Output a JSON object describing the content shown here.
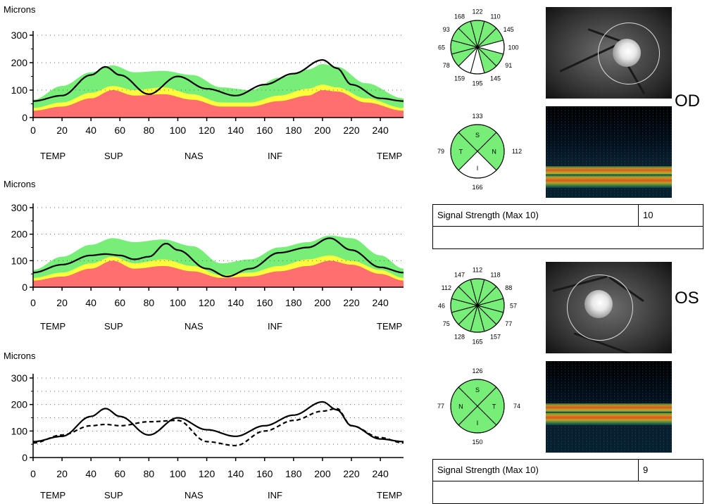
{
  "charts": [
    {
      "name": "od-rnfl-chart",
      "y_unit_label": "Microns",
      "x_tick_labels": [
        "0",
        "20",
        "40",
        "60",
        "80",
        "100",
        "120",
        "140",
        "160",
        "180",
        "200",
        "220",
        "240"
      ],
      "y_tick_labels": [
        "0",
        "100",
        "200",
        "300"
      ],
      "region_labels": [
        "TEMP",
        "SUP",
        "NAS",
        "INF",
        "TEMP"
      ]
    },
    {
      "name": "os-rnfl-chart",
      "y_unit_label": "Microns",
      "x_tick_labels": [
        "0",
        "20",
        "40",
        "60",
        "80",
        "100",
        "120",
        "140",
        "160",
        "180",
        "200",
        "220",
        "240"
      ],
      "y_tick_labels": [
        "0",
        "100",
        "200",
        "300"
      ],
      "region_labels": [
        "TEMP",
        "SUP",
        "NAS",
        "INF",
        "TEMP"
      ]
    },
    {
      "name": "comparison-chart",
      "y_unit_label": "Microns",
      "x_tick_labels": [
        "0",
        "20",
        "40",
        "60",
        "80",
        "100",
        "120",
        "140",
        "160",
        "180",
        "200",
        "220",
        "240"
      ],
      "y_tick_labels": [
        "0",
        "100",
        "200",
        "300"
      ],
      "region_labels": [
        "TEMP",
        "SUP",
        "NAS",
        "INF",
        "TEMP"
      ]
    }
  ],
  "chart_data": [
    {
      "type": "area",
      "xlabel": "",
      "ylabel": "Microns",
      "xlim": [
        0,
        256
      ],
      "ylim": [
        0,
        300
      ],
      "x": [
        0,
        20,
        40,
        50,
        60,
        80,
        100,
        120,
        140,
        160,
        180,
        200,
        210,
        220,
        240,
        256
      ],
      "series": [
        {
          "values": [
            60,
            80,
            155,
            185,
            155,
            85,
            150,
            105,
            80,
            120,
            160,
            210,
            180,
            120,
            70,
            60
          ],
          "color": "#000000",
          "style": "solid"
        }
      ],
      "bands": {
        "x": [
          0,
          20,
          40,
          55,
          70,
          90,
          110,
          130,
          150,
          170,
          190,
          200,
          210,
          230,
          256
        ],
        "red_upper": [
          25,
          40,
          70,
          100,
          80,
          85,
          65,
          40,
          40,
          60,
          80,
          100,
          95,
          55,
          25
        ],
        "yellow_upper": [
          35,
          55,
          90,
          115,
          100,
          110,
          85,
          55,
          55,
          80,
          105,
          120,
          110,
          70,
          35
        ],
        "green_upper": [
          65,
          115,
          165,
          190,
          165,
          170,
          155,
          110,
          100,
          145,
          175,
          195,
          185,
          125,
          70
        ]
      },
      "band_colors": {
        "red": "#ff6f6f",
        "yellow": "#ffff3c",
        "green": "#77ee77"
      }
    },
    {
      "type": "area",
      "xlabel": "",
      "ylabel": "Microns",
      "xlim": [
        0,
        256
      ],
      "ylim": [
        0,
        300
      ],
      "x": [
        0,
        20,
        40,
        50,
        60,
        70,
        80,
        92,
        100,
        120,
        134,
        150,
        170,
        190,
        205,
        220,
        240,
        256
      ],
      "series": [
        {
          "values": [
            55,
            85,
            120,
            125,
            120,
            105,
            115,
            165,
            140,
            70,
            40,
            70,
            130,
            150,
            185,
            140,
            75,
            55
          ],
          "color": "#000000",
          "style": "solid"
        }
      ],
      "bands": {
        "x": [
          0,
          20,
          40,
          55,
          70,
          90,
          110,
          130,
          150,
          170,
          190,
          205,
          220,
          240,
          256
        ],
        "red_upper": [
          25,
          40,
          70,
          100,
          70,
          80,
          60,
          35,
          40,
          60,
          80,
          100,
          85,
          50,
          25
        ],
        "yellow_upper": [
          35,
          55,
          90,
          115,
          90,
          105,
          80,
          45,
          55,
          80,
          105,
          120,
          100,
          65,
          35
        ],
        "green_upper": [
          65,
          115,
          160,
          185,
          170,
          180,
          155,
          90,
          105,
          150,
          170,
          195,
          185,
          120,
          70
        ]
      },
      "band_colors": {
        "red": "#ff6f6f",
        "yellow": "#ffff3c",
        "green": "#77ee77"
      }
    },
    {
      "type": "line",
      "xlabel": "",
      "ylabel": "Microns",
      "xlim": [
        0,
        256
      ],
      "ylim": [
        0,
        300
      ],
      "x": [
        0,
        20,
        40,
        50,
        60,
        80,
        100,
        120,
        140,
        160,
        180,
        200,
        210,
        220,
        240,
        256
      ],
      "series": [
        {
          "values": [
            60,
            80,
            155,
            185,
            155,
            85,
            150,
            105,
            80,
            120,
            160,
            210,
            180,
            120,
            70,
            60
          ],
          "color": "#000000",
          "style": "solid"
        },
        {
          "values": [
            55,
            85,
            120,
            125,
            120,
            135,
            140,
            60,
            45,
            100,
            140,
            175,
            185,
            120,
            75,
            55
          ],
          "color": "#000000",
          "style": "dashed"
        }
      ]
    }
  ],
  "od": {
    "eye_label": "OD",
    "clock_values": [
      "122",
      "110",
      "145",
      "100",
      "91",
      "145",
      "195",
      "159",
      "78",
      "65",
      "93",
      "168"
    ],
    "clock_fills": [
      "#77ee77",
      "#77ee77",
      "#77ee77",
      "#ffffff",
      "#77ee77",
      "#77ee77",
      "#ffffff",
      "#ffffff",
      "#77ee77",
      "#77ee77",
      "#77ee77",
      "#77ee77"
    ],
    "quadrant_values": {
      "top": "133",
      "right": "112",
      "bottom": "166",
      "left": "79"
    },
    "quadrant_labels": {
      "top": "S",
      "right": "N",
      "bottom": "I",
      "left": "T"
    },
    "quadrant_fills": {
      "top": "#77ee77",
      "right": "#77ee77",
      "bottom": "#ffffff",
      "left": "#77ee77"
    },
    "signal_label": "Signal Strength (Max 10)",
    "signal_value": "10"
  },
  "os": {
    "eye_label": "OS",
    "clock_values": [
      "112",
      "118",
      "88",
      "57",
      "77",
      "157",
      "165",
      "128",
      "75",
      "46",
      "112",
      "147"
    ],
    "clock_fills": [
      "#77ee77",
      "#77ee77",
      "#77ee77",
      "#77ee77",
      "#77ee77",
      "#77ee77",
      "#77ee77",
      "#77ee77",
      "#77ee77",
      "#77ee77",
      "#77ee77",
      "#77ee77"
    ],
    "quadrant_values": {
      "top": "126",
      "right": "74",
      "bottom": "150",
      "left": "77"
    },
    "quadrant_labels": {
      "top": "S",
      "right": "T",
      "bottom": "I",
      "left": "N"
    },
    "quadrant_fills": {
      "top": "#77ee77",
      "right": "#77ee77",
      "bottom": "#77ee77",
      "left": "#77ee77"
    },
    "signal_label": "Signal Strength (Max 10)",
    "signal_value": "9"
  }
}
